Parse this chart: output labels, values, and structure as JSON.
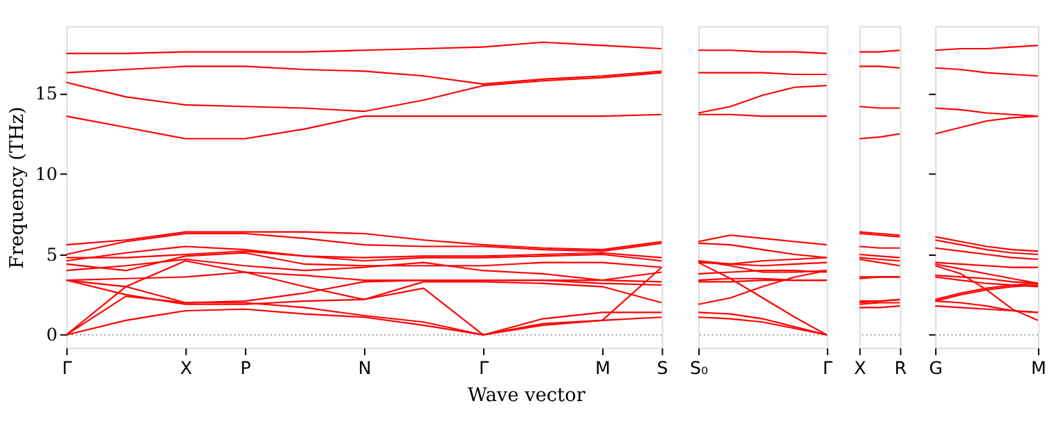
{
  "chart_data": [
    {
      "type": "line",
      "ylabel": "Frequency (THz)",
      "xlabel": "Wave vector",
      "ylim": [
        -0.8,
        19.2
      ],
      "yticks": [
        0,
        5,
        10,
        15
      ],
      "categories": [
        "Γ",
        null,
        "X",
        "P",
        null,
        "N",
        null,
        "Γ",
        null,
        "M",
        "S"
      ],
      "ref_lines": [
        {
          "axis": "y",
          "value": 0,
          "color": "#9999bb",
          "line_style": "dotted"
        }
      ],
      "series": [
        {
          "color": "#ff0000",
          "values": [
            17.5,
            17.5,
            17.6,
            17.6,
            17.6,
            17.7,
            17.8,
            17.9,
            18.2,
            18.0,
            17.8
          ]
        },
        {
          "color": "#ff0000",
          "values": [
            16.3,
            16.5,
            16.7,
            16.7,
            16.5,
            16.4,
            16.1,
            15.6,
            15.9,
            16.1,
            16.4
          ]
        },
        {
          "color": "#ff0000",
          "values": [
            15.7,
            14.8,
            14.3,
            14.2,
            14.1,
            13.9,
            14.6,
            15.5,
            15.8,
            16.0,
            16.3
          ]
        },
        {
          "color": "#ff0000",
          "values": [
            13.6,
            12.9,
            12.2,
            12.2,
            12.8,
            13.6,
            13.6,
            13.6,
            13.6,
            13.6,
            13.7
          ]
        },
        {
          "color": "#ff0000",
          "values": [
            0,
            0.9,
            1.5,
            1.6,
            1.3,
            1.1,
            0.6,
            0,
            0.6,
            0.9,
            1.1
          ]
        },
        {
          "color": "#ff0000",
          "values": [
            0,
            2.4,
            2.0,
            2.0,
            1.7,
            1.2,
            0.8,
            0,
            1.0,
            1.4,
            1.4
          ]
        },
        {
          "color": "#ff0000",
          "values": [
            0,
            3.0,
            4.6,
            3.9,
            3.0,
            2.2,
            2.9,
            0,
            0.7,
            0.9,
            4.2
          ]
        },
        {
          "color": "#ff0000",
          "values": [
            3.4,
            2.5,
            1.9,
            1.9,
            2.1,
            2.2,
            3.3,
            3.3,
            3.2,
            3.0,
            2.0
          ]
        },
        {
          "color": "#ff0000",
          "values": [
            3.4,
            3.0,
            2.0,
            2.1,
            2.6,
            3.3,
            3.4,
            3.4,
            3.4,
            3.2,
            3.1
          ]
        },
        {
          "color": "#ff0000",
          "values": [
            3.4,
            3.5,
            3.6,
            3.9,
            3.7,
            3.4,
            3.4,
            3.4,
            3.4,
            3.4,
            3.3
          ]
        },
        {
          "color": "#ff0000",
          "values": [
            4.0,
            4.3,
            4.7,
            4.3,
            4.0,
            4.2,
            4.5,
            4.0,
            3.8,
            3.4,
            3.9
          ]
        },
        {
          "color": "#ff0000",
          "values": [
            4.4,
            4.0,
            4.9,
            5.1,
            4.4,
            4.3,
            4.3,
            4.3,
            4.5,
            4.5,
            4.2
          ]
        },
        {
          "color": "#ff0000",
          "values": [
            4.8,
            4.8,
            5.0,
            5.2,
            4.9,
            4.6,
            4.8,
            4.8,
            4.9,
            5.0,
            4.6
          ]
        },
        {
          "color": "#ff0000",
          "values": [
            4.6,
            5.1,
            5.5,
            5.3,
            4.9,
            4.8,
            4.9,
            4.9,
            5.0,
            5.1,
            4.8
          ]
        },
        {
          "color": "#ff0000",
          "values": [
            5.0,
            5.8,
            6.3,
            6.3,
            6.0,
            5.6,
            5.5,
            5.5,
            5.3,
            5.2,
            5.7
          ]
        },
        {
          "color": "#ff0000",
          "values": [
            5.6,
            5.9,
            6.4,
            6.4,
            6.4,
            6.3,
            5.9,
            5.6,
            5.4,
            5.3,
            5.8
          ]
        }
      ]
    },
    {
      "type": "line",
      "ylim": [
        -0.8,
        19.2
      ],
      "tick_labels": "x",
      "categories": [
        "S₀",
        null,
        null,
        null,
        "Γ"
      ],
      "ref_lines": [
        {
          "axis": "y",
          "value": 0,
          "color": "#9999bb",
          "line_style": "dotted"
        }
      ],
      "series": [
        {
          "color": "#ff0000",
          "values": [
            17.7,
            17.7,
            17.6,
            17.6,
            17.5
          ]
        },
        {
          "color": "#ff0000",
          "values": [
            16.3,
            16.3,
            16.3,
            16.2,
            16.2
          ]
        },
        {
          "color": "#ff0000",
          "values": [
            13.8,
            14.2,
            14.9,
            15.4,
            15.5
          ]
        },
        {
          "color": "#ff0000",
          "values": [
            13.7,
            13.7,
            13.6,
            13.6,
            13.6
          ]
        },
        {
          "color": "#ff0000",
          "values": [
            1.1,
            1.0,
            0.8,
            0.4,
            0
          ]
        },
        {
          "color": "#ff0000",
          "values": [
            1.4,
            1.3,
            1.0,
            0.5,
            0
          ]
        },
        {
          "color": "#ff0000",
          "values": [
            1.9,
            2.3,
            3.0,
            3.6,
            4.0
          ]
        },
        {
          "color": "#ff0000",
          "values": [
            4.5,
            3.5,
            2.3,
            1.1,
            0
          ]
        },
        {
          "color": "#ff0000",
          "values": [
            3.3,
            3.3,
            3.4,
            3.4,
            3.4
          ]
        },
        {
          "color": "#ff0000",
          "values": [
            3.4,
            3.5,
            3.5,
            3.4,
            3.4
          ]
        },
        {
          "color": "#ff0000",
          "values": [
            3.8,
            3.9,
            4.0,
            4.0,
            3.9
          ]
        },
        {
          "color": "#ff0000",
          "values": [
            4.6,
            4.3,
            3.9,
            3.9,
            4.0
          ]
        },
        {
          "color": "#ff0000",
          "values": [
            4.5,
            4.4,
            4.3,
            4.4,
            4.5
          ]
        },
        {
          "color": "#ff0000",
          "values": [
            4.6,
            4.4,
            4.6,
            4.7,
            4.8
          ]
        },
        {
          "color": "#ff0000",
          "values": [
            5.7,
            5.6,
            5.3,
            5.0,
            4.8
          ]
        },
        {
          "color": "#ff0000",
          "values": [
            5.8,
            6.2,
            6.0,
            5.8,
            5.6
          ]
        }
      ]
    },
    {
      "type": "line",
      "ylim": [
        -0.8,
        19.2
      ],
      "tick_labels": "x",
      "categories": [
        "X",
        null,
        "R"
      ],
      "ref_lines": [
        {
          "axis": "y",
          "value": 0,
          "color": "#9999bb",
          "line_style": "dotted"
        }
      ],
      "series": [
        {
          "color": "#ff0000",
          "values": [
            17.6,
            17.6,
            17.7
          ]
        },
        {
          "color": "#ff0000",
          "values": [
            16.7,
            16.7,
            16.6
          ]
        },
        {
          "color": "#ff0000",
          "values": [
            14.2,
            14.1,
            14.1
          ]
        },
        {
          "color": "#ff0000",
          "values": [
            12.2,
            12.3,
            12.5
          ]
        },
        {
          "color": "#ff0000",
          "values": [
            1.7,
            1.7,
            1.8
          ]
        },
        {
          "color": "#ff0000",
          "values": [
            1.9,
            2.0,
            2.0
          ]
        },
        {
          "color": "#ff0000",
          "values": [
            2.0,
            2.1,
            2.2
          ]
        },
        {
          "color": "#ff0000",
          "values": [
            2.1,
            2.1,
            2.2
          ]
        },
        {
          "color": "#ff0000",
          "values": [
            3.5,
            3.6,
            3.6
          ]
        },
        {
          "color": "#ff0000",
          "values": [
            3.6,
            3.6,
            3.6
          ]
        },
        {
          "color": "#ff0000",
          "values": [
            4.8,
            4.7,
            4.6
          ]
        },
        {
          "color": "#ff0000",
          "values": [
            4.7,
            4.5,
            4.3
          ]
        },
        {
          "color": "#ff0000",
          "values": [
            5.0,
            4.9,
            4.8
          ]
        },
        {
          "color": "#ff0000",
          "values": [
            5.5,
            5.4,
            5.4
          ]
        },
        {
          "color": "#ff0000",
          "values": [
            6.3,
            6.2,
            6.1
          ]
        },
        {
          "color": "#ff0000",
          "values": [
            6.4,
            6.3,
            6.2
          ]
        }
      ]
    },
    {
      "type": "line",
      "ylim": [
        -0.8,
        19.2
      ],
      "yticks": [
        0,
        5,
        10,
        15
      ],
      "tick_labels": "x",
      "categories": [
        "G",
        null,
        null,
        null,
        "M"
      ],
      "ref_lines": [
        {
          "axis": "y",
          "value": 0,
          "color": "#9999bb",
          "line_style": "dotted"
        }
      ],
      "series": [
        {
          "color": "#ff0000",
          "values": [
            17.7,
            17.8,
            17.8,
            17.9,
            18.0
          ]
        },
        {
          "color": "#ff0000",
          "values": [
            16.6,
            16.5,
            16.3,
            16.2,
            16.1
          ]
        },
        {
          "color": "#ff0000",
          "values": [
            14.1,
            14.0,
            13.8,
            13.7,
            13.6
          ]
        },
        {
          "color": "#ff0000",
          "values": [
            12.5,
            12.9,
            13.3,
            13.5,
            13.6
          ]
        },
        {
          "color": "#ff0000",
          "values": [
            2.1,
            2.0,
            1.8,
            1.5,
            1.4
          ]
        },
        {
          "color": "#ff0000",
          "values": [
            1.8,
            1.7,
            1.6,
            1.5,
            1.4
          ]
        },
        {
          "color": "#ff0000",
          "values": [
            2.1,
            2.5,
            2.8,
            3.0,
            3.1
          ]
        },
        {
          "color": "#ff0000",
          "values": [
            2.2,
            2.6,
            2.9,
            3.1,
            3.2
          ]
        },
        {
          "color": "#ff0000",
          "values": [
            3.6,
            3.4,
            3.2,
            3.1,
            3.0
          ]
        },
        {
          "color": "#ff0000",
          "values": [
            3.7,
            3.6,
            3.5,
            3.3,
            3.2
          ]
        },
        {
          "color": "#ff0000",
          "values": [
            4.4,
            4.1,
            3.8,
            3.5,
            3.2
          ]
        },
        {
          "color": "#ff0000",
          "values": [
            4.3,
            3.8,
            2.8,
            1.6,
            0.9
          ]
        },
        {
          "color": "#ff0000",
          "values": [
            4.5,
            4.4,
            4.3,
            4.2,
            4.2
          ]
        },
        {
          "color": "#ff0000",
          "values": [
            5.4,
            5.2,
            5.0,
            4.8,
            4.7
          ]
        },
        {
          "color": "#ff0000",
          "values": [
            5.9,
            5.6,
            5.3,
            5.1,
            5.0
          ]
        },
        {
          "color": "#ff0000",
          "values": [
            6.1,
            5.8,
            5.5,
            5.3,
            5.2
          ]
        }
      ]
    }
  ]
}
